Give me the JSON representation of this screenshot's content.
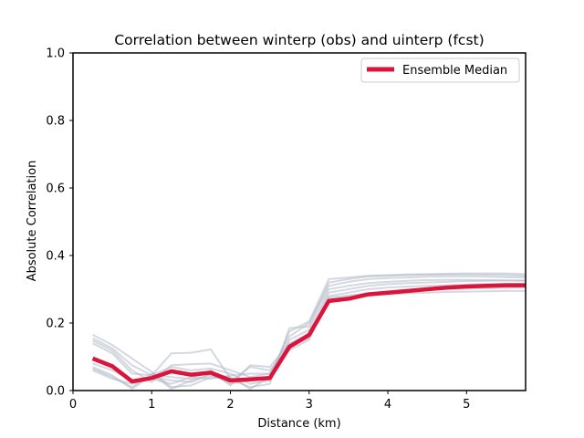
{
  "chart_data": {
    "type": "line",
    "title": "Correlation between winterp (obs) and uinterp (fcst)",
    "xlabel": "Distance (km)",
    "ylabel": "Absolute Correlation",
    "xlim": [
      0,
      5.75
    ],
    "ylim": [
      0,
      1.0
    ],
    "xticks": [
      0,
      1,
      2,
      3,
      4,
      5
    ],
    "xtick_labels": [
      "0",
      "1",
      "2",
      "3",
      "4",
      "5"
    ],
    "yticks": [
      0.0,
      0.2,
      0.4,
      0.6,
      0.8,
      1.0
    ],
    "ytick_labels": [
      "0.0",
      "0.2",
      "0.4",
      "0.6",
      "0.8",
      "1.0"
    ],
    "legend_position": "top-right",
    "grid": false,
    "x": [
      0.25,
      0.5,
      0.75,
      1.0,
      1.25,
      1.5,
      1.75,
      2.0,
      2.25,
      2.5,
      2.75,
      3.0,
      3.25,
      3.5,
      3.75,
      4.0,
      4.25,
      4.5,
      4.75,
      5.0,
      5.25,
      5.5,
      5.75
    ],
    "median": {
      "name": "Ensemble Median",
      "color": "#dc143c",
      "values": [
        0.095,
        0.072,
        0.027,
        0.037,
        0.057,
        0.047,
        0.053,
        0.03,
        0.033,
        0.037,
        0.13,
        0.165,
        0.265,
        0.272,
        0.285,
        0.29,
        0.295,
        0.3,
        0.305,
        0.308,
        0.31,
        0.312,
        0.312
      ]
    },
    "members": [
      {
        "values": [
          0.165,
          0.135,
          0.095,
          0.055,
          0.01,
          0.015,
          0.04,
          0.04,
          0.005,
          0.04,
          0.175,
          0.205,
          0.33,
          0.335,
          0.34,
          0.342,
          0.344,
          0.345,
          0.346,
          0.347,
          0.347,
          0.347,
          0.345
        ]
      },
      {
        "values": [
          0.155,
          0.125,
          0.075,
          0.045,
          0.11,
          0.112,
          0.122,
          0.035,
          0.01,
          0.02,
          0.185,
          0.19,
          0.32,
          0.33,
          0.338,
          0.34,
          0.342,
          0.343,
          0.344,
          0.344,
          0.343,
          0.342,
          0.34
        ]
      },
      {
        "values": [
          0.148,
          0.118,
          0.06,
          0.025,
          0.075,
          0.078,
          0.08,
          0.06,
          0.04,
          0.05,
          0.16,
          0.2,
          0.31,
          0.322,
          0.33,
          0.333,
          0.335,
          0.337,
          0.338,
          0.338,
          0.337,
          0.336,
          0.335
        ]
      },
      {
        "values": [
          0.14,
          0.11,
          0.05,
          0.045,
          0.07,
          0.06,
          0.065,
          0.05,
          0.02,
          0.03,
          0.15,
          0.18,
          0.3,
          0.31,
          0.318,
          0.322,
          0.325,
          0.327,
          0.328,
          0.328,
          0.327,
          0.326,
          0.325
        ]
      },
      {
        "values": [
          0.07,
          0.045,
          0.005,
          0.045,
          0.04,
          0.035,
          0.06,
          0.015,
          0.075,
          0.07,
          0.14,
          0.165,
          0.29,
          0.3,
          0.31,
          0.315,
          0.318,
          0.32,
          0.322,
          0.324,
          0.325,
          0.326,
          0.326
        ]
      },
      {
        "values": [
          0.065,
          0.04,
          0.01,
          0.05,
          0.005,
          0.03,
          0.045,
          0.025,
          0.07,
          0.06,
          0.13,
          0.155,
          0.28,
          0.29,
          0.3,
          0.305,
          0.308,
          0.31,
          0.312,
          0.314,
          0.315,
          0.316,
          0.316
        ]
      },
      {
        "values": [
          0.06,
          0.035,
          0.02,
          0.035,
          0.02,
          0.04,
          0.035,
          0.045,
          0.05,
          0.05,
          0.12,
          0.15,
          0.275,
          0.282,
          0.288,
          0.292,
          0.295,
          0.298,
          0.3,
          0.302,
          0.303,
          0.304,
          0.305
        ]
      },
      {
        "values": [
          0.08,
          0.06,
          0.03,
          0.04,
          0.03,
          0.025,
          0.05,
          0.02,
          0.03,
          0.035,
          0.125,
          0.16,
          0.27,
          0.278,
          0.282,
          0.285,
          0.288,
          0.29,
          0.292,
          0.293,
          0.294,
          0.295,
          0.295
        ]
      }
    ],
    "member_color": "#b0b8c6"
  }
}
